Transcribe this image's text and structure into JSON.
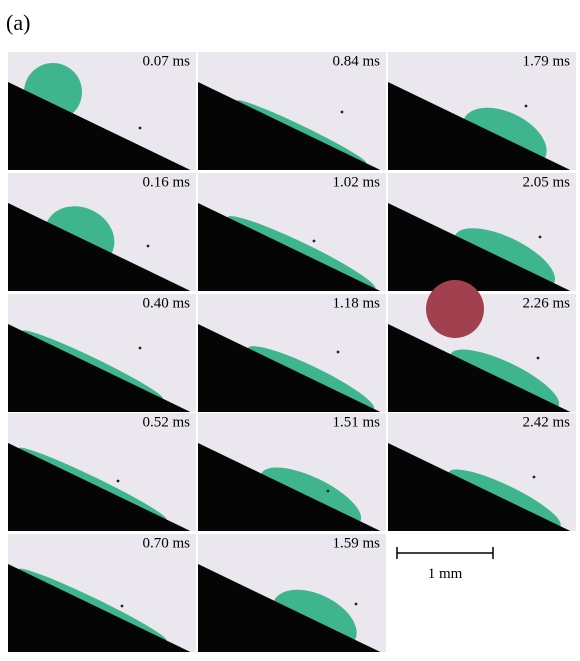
{
  "figure_label": "(a)",
  "panels": [
    "0.07 ms",
    "0.84 ms",
    "1.79 ms",
    "0.16 ms",
    "1.02 ms",
    "2.05 ms",
    "0.40 ms",
    "1.18 ms",
    "2.26 ms",
    "0.52 ms",
    "1.51 ms",
    "2.42 ms",
    "0.70 ms",
    "1.59 ms"
  ],
  "scale_bar": "1 mm"
}
